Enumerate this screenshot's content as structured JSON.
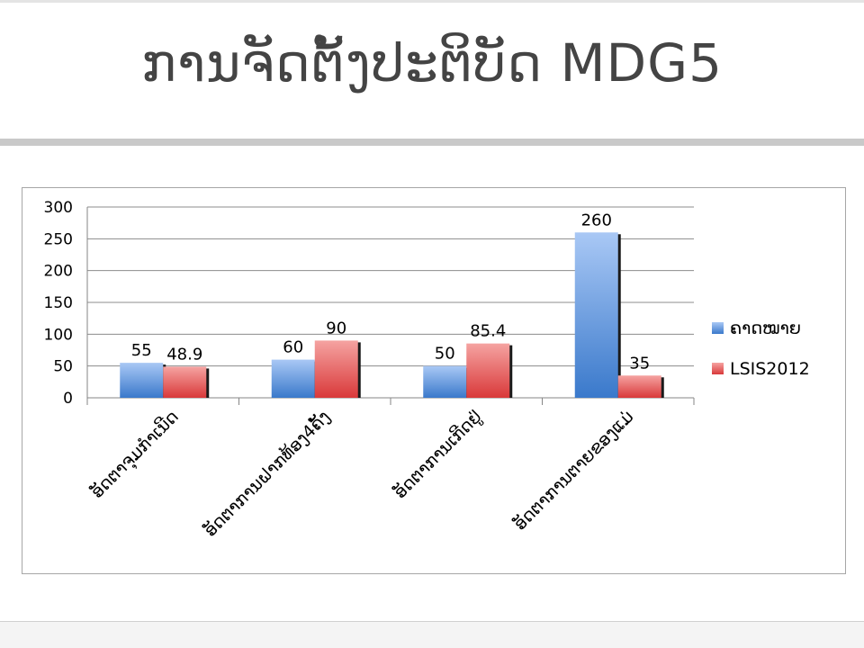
{
  "slide": {
    "title": "ການຈັດຕັ້ງປະຕິບັດ MDG5"
  },
  "colors": {
    "series_target": "#4f81bd",
    "series_lsis": "#c0504d",
    "text": "#000000"
  },
  "chart_data": {
    "type": "bar",
    "categories": [
      "ອັດຕາຈຸມກຳເນີດ",
      "ອັດຕາການຝາກທ້ອງ4ຄັ້ງ",
      "ອັດຕາການເກີດຢູ່",
      "ອັດຕາການຕາຍຂອງແມ່"
    ],
    "series": [
      {
        "name": "ຄາດໝາຍ",
        "values": [
          55,
          60,
          50,
          260
        ]
      },
      {
        "name": "LSIS2012",
        "values": [
          48.9,
          90,
          85.4,
          35
        ]
      }
    ],
    "data_labels": [
      [
        "55",
        "60",
        "50",
        "260"
      ],
      [
        "48.9",
        "90",
        "85.4",
        "35"
      ]
    ],
    "yticks": [
      "0",
      "50",
      "100",
      "150",
      "200",
      "250",
      "300"
    ],
    "ylim": [
      0,
      300
    ],
    "grid": true,
    "legend_position": "right",
    "title": "",
    "xlabel": "",
    "ylabel": ""
  }
}
